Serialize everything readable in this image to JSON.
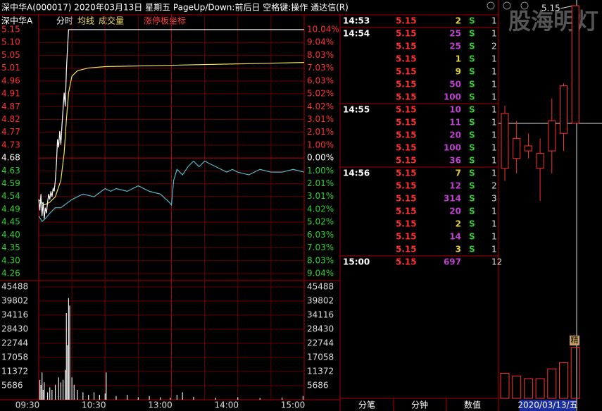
{
  "header": {
    "title": "深中华A(000017)  2020年03月13日 星期五 PageUp/Down:前后日 空格键:操作 通达信(R)"
  },
  "intraday": {
    "tabs": [
      "深中华A",
      "分时",
      "均线",
      "成交量",
      "涨停板坐标"
    ],
    "price_labels": [
      "5.15",
      "5.10",
      "5.05",
      "5.01",
      "4.96",
      "4.91",
      "4.87",
      "4.82",
      "4.77",
      "4.73",
      "4.68",
      "4.63",
      "4.59",
      "4.54",
      "4.49",
      "4.45",
      "4.40",
      "4.35",
      "4.30",
      "4.26"
    ],
    "pct_labels": [
      "10.04%",
      "9.04%",
      "8.03%",
      "7.03%",
      "6.03%",
      "5.02%",
      "4.02%",
      "3.01%",
      "2.01%",
      "1.00%",
      "0.00%",
      "1.00%",
      "2.01%",
      "3.01%",
      "4.02%",
      "5.02%",
      "6.03%",
      "7.03%",
      "8.03%",
      "9.04%"
    ],
    "ylim": [
      4.26,
      5.15
    ],
    "prev_close": 4.68,
    "time_labels": [
      "09:30",
      "10:30",
      "13:00",
      "14:00",
      "15:00"
    ],
    "price": {
      "color": "#ffffff",
      "x": [
        0,
        1,
        2,
        3,
        4,
        5,
        6,
        7,
        8,
        9,
        10,
        11,
        12,
        13,
        14,
        15,
        16,
        17,
        18,
        19,
        20,
        21,
        22,
        23,
        24,
        25,
        26,
        27,
        240
      ],
      "values": [
        4.53,
        4.49,
        4.55,
        4.47,
        4.52,
        4.46,
        4.5,
        4.48,
        4.52,
        4.55,
        4.53,
        4.56,
        4.54,
        4.57,
        4.56,
        4.6,
        4.66,
        4.75,
        4.72,
        4.78,
        4.73,
        4.8,
        4.86,
        4.92,
        4.87,
        5.0,
        5.08,
        5.15,
        5.15
      ]
    },
    "avg": {
      "color": "#f0e060",
      "x": [
        0,
        5,
        10,
        15,
        20,
        23,
        25,
        27,
        30,
        35,
        45,
        60,
        120,
        180,
        240
      ],
      "values": [
        4.53,
        4.51,
        4.52,
        4.54,
        4.6,
        4.7,
        4.82,
        4.92,
        4.98,
        5.0,
        5.01,
        5.015,
        5.02,
        5.025,
        5.03
      ]
    },
    "index": {
      "color": "#50b8c8",
      "x": [
        0,
        3,
        6,
        10,
        15,
        20,
        30,
        40,
        50,
        60,
        65,
        70,
        80,
        90,
        100,
        110,
        118,
        120,
        122,
        125,
        130,
        135,
        140,
        145,
        150,
        155,
        160,
        165,
        170,
        175,
        180,
        190,
        200,
        210,
        220,
        230,
        240
      ],
      "values": [
        4.47,
        4.45,
        4.46,
        4.48,
        4.5,
        4.5,
        4.53,
        4.55,
        4.54,
        4.57,
        4.56,
        4.57,
        4.56,
        4.58,
        4.56,
        4.55,
        4.52,
        4.51,
        4.6,
        4.64,
        4.62,
        4.65,
        4.67,
        4.65,
        4.67,
        4.66,
        4.65,
        4.64,
        4.63,
        4.64,
        4.63,
        4.62,
        4.64,
        4.63,
        4.63,
        4.64,
        4.63
      ]
    },
    "volume": {
      "ylim": [
        0,
        45488
      ],
      "ticks": [
        45488,
        39802,
        34116,
        28430,
        22744,
        17058,
        11372,
        5686
      ],
      "color": "#e8e8e8",
      "x": [
        1,
        2,
        3,
        4,
        5,
        8,
        10,
        12,
        15,
        18,
        20,
        22,
        24,
        25,
        26,
        27,
        28,
        30,
        32,
        35,
        40,
        45,
        50,
        55,
        60,
        61,
        70,
        80,
        90,
        100,
        110,
        119,
        125,
        130,
        140,
        160,
        180,
        200,
        220,
        239
      ],
      "values": [
        8000,
        6000,
        11000,
        4000,
        7000,
        3000,
        5000,
        4000,
        6000,
        9000,
        7000,
        8000,
        12000,
        35000,
        22000,
        41000,
        38000,
        9000,
        6000,
        4000,
        3000,
        2000,
        3000,
        2000,
        2500,
        11000,
        1500,
        2000,
        1000,
        1500,
        1000,
        800,
        2000,
        3000,
        1200,
        800,
        1000,
        700,
        900,
        1500
      ]
    }
  },
  "ticks": {
    "rows": [
      {
        "time": "14:53",
        "price": "5.15",
        "volume": 2,
        "color": "#e0d040",
        "side": "S",
        "count": "1"
      },
      {
        "time": "14:54",
        "price": "5.15",
        "volume": 25,
        "color": "#c040d0",
        "side": "S",
        "count": "1"
      },
      {
        "price": "5.15",
        "volume": 25,
        "color": "#c040d0",
        "side": "S",
        "count": "2"
      },
      {
        "price": "5.15",
        "volume": 1,
        "color": "#e0d040",
        "side": "S",
        "count": "1"
      },
      {
        "price": "5.15",
        "volume": 9,
        "color": "#e0d040",
        "side": "S",
        "count": "1"
      },
      {
        "price": "5.15",
        "volume": 50,
        "color": "#c040d0",
        "side": "S",
        "count": "1"
      },
      {
        "price": "5.15",
        "volume": 100,
        "color": "#c040d0",
        "side": "S",
        "count": "1"
      },
      {
        "time": "14:55",
        "price": "5.15",
        "volume": 10,
        "color": "#c040d0",
        "side": "S",
        "count": "1"
      },
      {
        "price": "5.15",
        "volume": 11,
        "color": "#c040d0",
        "side": "S",
        "count": "1"
      },
      {
        "price": "5.15",
        "volume": 20,
        "color": "#c040d0",
        "side": "S",
        "count": "1"
      },
      {
        "price": "5.15",
        "volume": 100,
        "color": "#c040d0",
        "side": "S",
        "count": "1"
      },
      {
        "price": "5.15",
        "volume": 36,
        "color": "#c040d0",
        "side": "S",
        "count": "1"
      },
      {
        "time": "14:56",
        "price": "5.15",
        "volume": 7,
        "color": "#e0d040",
        "side": "S",
        "count": "1"
      },
      {
        "price": "5.15",
        "volume": 12,
        "color": "#c040d0",
        "side": "S",
        "count": "2"
      },
      {
        "price": "5.15",
        "volume": 314,
        "color": "#c040d0",
        "side": "S",
        "count": "3"
      },
      {
        "price": "5.15",
        "volume": 20,
        "color": "#c040d0",
        "side": "S",
        "count": "1"
      },
      {
        "price": "5.15",
        "volume": 2,
        "color": "#e0d040",
        "side": "S",
        "count": "1"
      },
      {
        "price": "5.15",
        "volume": 14,
        "color": "#c040d0",
        "side": "S",
        "count": "1"
      },
      {
        "price": "5.15",
        "volume": 3,
        "color": "#e0d040",
        "side": "S",
        "count": "1"
      },
      {
        "time": "15:00",
        "price": "5.15",
        "volume": 697,
        "color": "#c040d0",
        "count": "12"
      }
    ]
  },
  "bottom_tabs": [
    "分笔",
    "分钟",
    "数值"
  ],
  "kline": {
    "watermark": "股海明灯",
    "high_label": "5.15",
    "ylim": [
      3.9,
      5.17
    ],
    "color": "#ff3030",
    "candles": [
      {
        "open": 4.5,
        "high": 4.75,
        "low": 4.45,
        "close": 4.72
      },
      {
        "open": 4.54,
        "high": 4.69,
        "low": 4.48,
        "close": 4.62
      },
      {
        "open": 4.57,
        "high": 4.64,
        "low": 4.54,
        "close": 4.59
      },
      {
        "open": 4.5,
        "high": 4.62,
        "low": 4.37,
        "close": 4.56
      },
      {
        "open": 4.57,
        "high": 4.78,
        "low": 4.48,
        "close": 4.69
      },
      {
        "open": 4.64,
        "high": 4.84,
        "low": 4.57,
        "close": 4.83
      },
      {
        "open": 4.68,
        "high": 5.15,
        "low": 4.68,
        "close": 5.15
      }
    ],
    "volume_ylim": [
      0,
      60
    ],
    "volumes": [
      28,
      25,
      22,
      22,
      33,
      40,
      57
    ],
    "tag": "精",
    "date": "2020/03/13/五"
  }
}
